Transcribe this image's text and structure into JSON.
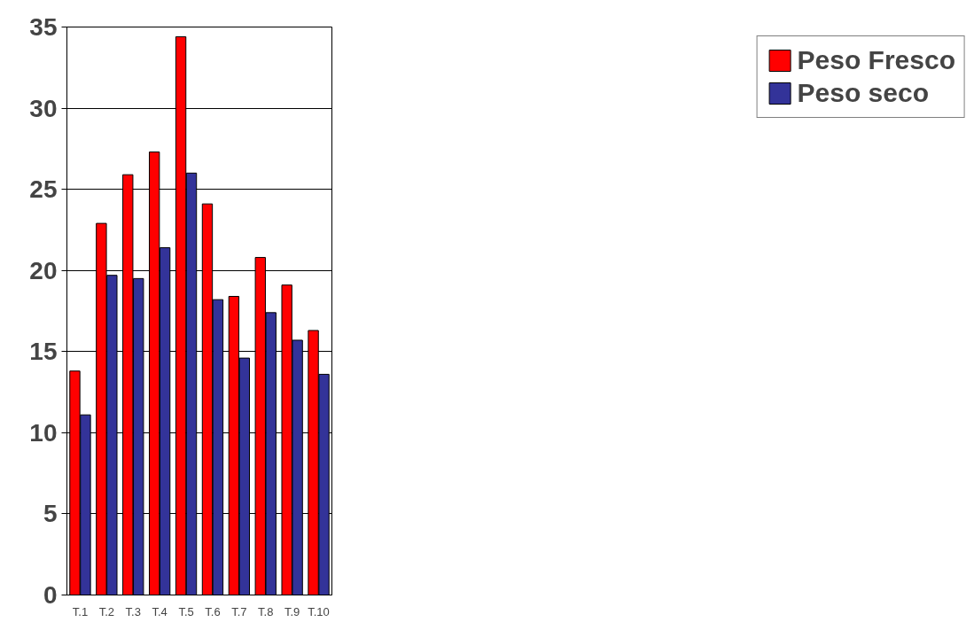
{
  "chart_data": {
    "type": "bar",
    "categories": [
      "T.1",
      "T.2",
      "T.3",
      "T.4",
      "T.5",
      "T.6",
      "T.7",
      "T.8",
      "T.9",
      "T.10"
    ],
    "series": [
      {
        "name": "Peso Fresco",
        "color": "#ff0000",
        "values": [
          13.8,
          22.9,
          25.9,
          27.3,
          34.4,
          24.1,
          18.4,
          20.8,
          19.1,
          16.3
        ]
      },
      {
        "name": "Peso seco",
        "color": "#333399",
        "values": [
          11.1,
          19.7,
          19.5,
          21.4,
          26.0,
          18.2,
          14.6,
          17.4,
          15.7,
          13.6
        ]
      }
    ],
    "ylim": [
      0,
      35
    ],
    "yticks": [
      0,
      5,
      10,
      15,
      20,
      25,
      30,
      35
    ],
    "grid": "y",
    "legend": "right"
  }
}
